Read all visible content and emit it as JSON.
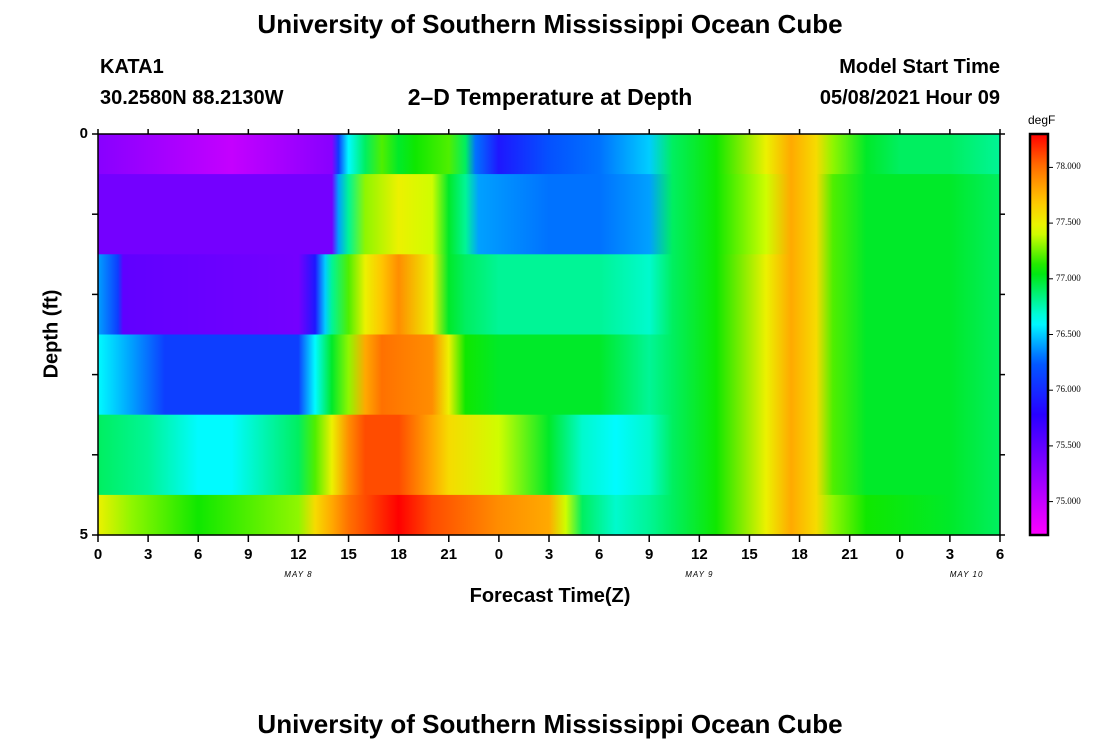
{
  "header": {
    "title": "University of Southern Mississippi Ocean Cube",
    "station": "KATA1",
    "coords": "30.2580N  88.2130W",
    "subtitle": "2–D Temperature at Depth",
    "model_label": "Model Start Time",
    "model_time": "05/08/2021 Hour 09"
  },
  "footer": {
    "title": "University of Southern Mississippi Ocean Cube"
  },
  "chart_data": {
    "type": "heatmap",
    "xlabel": "Forecast Time(Z)",
    "ylabel": "Depth (ft)",
    "units": "degF",
    "y_tick_labels": [
      "0",
      "5"
    ],
    "x_tick_labels": [
      "0",
      "3",
      "6",
      "9",
      "12",
      "15",
      "18",
      "21",
      "0",
      "3",
      "6",
      "9",
      "12",
      "15",
      "18",
      "21",
      "0",
      "3",
      "6"
    ],
    "day_labels": [
      {
        "hour": 12,
        "text": "MAY 8"
      },
      {
        "hour": 36,
        "text": "MAY 9"
      },
      {
        "hour": 52,
        "text": "MAY 10"
      }
    ],
    "x_range_hours": [
      0,
      54
    ],
    "depth_bands_ft": [
      [
        0,
        0.5
      ],
      [
        0.5,
        1.5
      ],
      [
        1.5,
        2.5
      ],
      [
        2.5,
        3.5
      ],
      [
        3.5,
        4.5
      ],
      [
        4.5,
        5
      ]
    ],
    "colorbar": {
      "label": "degF",
      "range": [
        74.7,
        78.3
      ],
      "ticks": [
        "75.000",
        "75.500",
        "76.000",
        "76.500",
        "77.000",
        "77.500",
        "78.000"
      ]
    },
    "temperature_rows": [
      {
        "depth_ft": [
          0,
          0.5
        ],
        "points": [
          [
            0,
            75.3
          ],
          [
            8,
            75.0
          ],
          [
            14,
            75.3
          ],
          [
            14.4,
            76.1
          ],
          [
            15,
            76.6
          ],
          [
            16,
            76.9
          ],
          [
            17,
            77.2
          ],
          [
            18,
            77.0
          ],
          [
            19,
            77.1
          ],
          [
            21,
            77.2
          ],
          [
            22,
            76.9
          ],
          [
            22.6,
            76.3
          ],
          [
            24,
            75.9
          ],
          [
            27,
            76.2
          ],
          [
            30,
            76.3
          ],
          [
            33,
            76.5
          ],
          [
            34.4,
            76.9
          ],
          [
            37,
            77.1
          ],
          [
            40,
            77.5
          ],
          [
            41.5,
            77.8
          ],
          [
            43,
            77.6
          ],
          [
            44,
            77.3
          ],
          [
            46,
            77.0
          ],
          [
            48,
            76.9
          ],
          [
            51,
            76.9
          ],
          [
            54,
            76.8
          ]
        ]
      },
      {
        "depth_ft": [
          0.5,
          1.5
        ],
        "points": [
          [
            0,
            75.4
          ],
          [
            14,
            75.4
          ],
          [
            14.4,
            76.4
          ],
          [
            15,
            76.8
          ],
          [
            16,
            77.3
          ],
          [
            18,
            77.5
          ],
          [
            20,
            77.4
          ],
          [
            21,
            77.0
          ],
          [
            22,
            76.8
          ],
          [
            22.8,
            76.4
          ],
          [
            27,
            76.3
          ],
          [
            30,
            76.3
          ],
          [
            33,
            76.4
          ],
          [
            34.4,
            76.9
          ],
          [
            37,
            77.1
          ],
          [
            40,
            77.4
          ],
          [
            41.5,
            77.8
          ],
          [
            43,
            77.6
          ],
          [
            44,
            77.2
          ],
          [
            46,
            77.0
          ],
          [
            51,
            77.0
          ],
          [
            54,
            76.9
          ]
        ]
      },
      {
        "depth_ft": [
          1.5,
          2.5
        ],
        "points": [
          [
            0,
            76.4
          ],
          [
            1.2,
            76.1
          ],
          [
            1.5,
            75.5
          ],
          [
            12,
            75.4
          ],
          [
            13,
            75.9
          ],
          [
            13.6,
            76.5
          ],
          [
            14,
            76.8
          ],
          [
            15,
            77.2
          ],
          [
            16,
            77.5
          ],
          [
            17,
            77.7
          ],
          [
            18,
            77.9
          ],
          [
            20,
            77.5
          ],
          [
            21,
            77.0
          ],
          [
            22,
            76.9
          ],
          [
            24,
            76.8
          ],
          [
            30,
            76.8
          ],
          [
            33,
            76.7
          ],
          [
            34.4,
            76.9
          ],
          [
            37,
            77.1
          ],
          [
            40,
            77.5
          ],
          [
            41.5,
            77.8
          ],
          [
            43,
            77.6
          ],
          [
            44,
            77.2
          ],
          [
            46,
            77.0
          ],
          [
            51,
            77.0
          ],
          [
            54,
            76.9
          ]
        ]
      },
      {
        "depth_ft": [
          2.5,
          3.5
        ],
        "points": [
          [
            0,
            76.6
          ],
          [
            2,
            76.4
          ],
          [
            4,
            76.1
          ],
          [
            12,
            76.1
          ],
          [
            13,
            76.6
          ],
          [
            14,
            77.0
          ],
          [
            15,
            77.3
          ],
          [
            16,
            77.8
          ],
          [
            17,
            78.0
          ],
          [
            20,
            77.9
          ],
          [
            21,
            77.5
          ],
          [
            22,
            77.1
          ],
          [
            24,
            77.0
          ],
          [
            30,
            77.0
          ],
          [
            33,
            76.8
          ],
          [
            34.4,
            76.9
          ],
          [
            37,
            77.1
          ],
          [
            40,
            77.5
          ],
          [
            41.5,
            77.8
          ],
          [
            43,
            77.6
          ],
          [
            44,
            77.2
          ],
          [
            46,
            77.0
          ],
          [
            51,
            77.0
          ],
          [
            54,
            76.9
          ]
        ]
      },
      {
        "depth_ft": [
          3.5,
          4.5
        ],
        "points": [
          [
            0,
            76.9
          ],
          [
            3,
            76.8
          ],
          [
            6,
            76.6
          ],
          [
            8,
            76.6
          ],
          [
            12,
            76.9
          ],
          [
            13,
            77.2
          ],
          [
            14,
            77.5
          ],
          [
            15,
            77.9
          ],
          [
            16,
            78.1
          ],
          [
            18,
            78.1
          ],
          [
            20,
            77.8
          ],
          [
            21,
            77.6
          ],
          [
            24,
            77.4
          ],
          [
            27,
            77.0
          ],
          [
            29,
            76.7
          ],
          [
            31,
            76.6
          ],
          [
            33,
            76.7
          ],
          [
            34.4,
            76.9
          ],
          [
            37,
            77.1
          ],
          [
            40,
            77.5
          ],
          [
            41.5,
            77.8
          ],
          [
            43,
            77.6
          ],
          [
            44,
            77.2
          ],
          [
            46,
            77.0
          ],
          [
            51,
            77.0
          ],
          [
            54,
            76.9
          ]
        ]
      },
      {
        "depth_ft": [
          4.5,
          5
        ],
        "points": [
          [
            0,
            77.5
          ],
          [
            2,
            77.3
          ],
          [
            6,
            77.1
          ],
          [
            12,
            77.3
          ],
          [
            13,
            77.6
          ],
          [
            14,
            77.8
          ],
          [
            15,
            78.0
          ],
          [
            17,
            78.2
          ],
          [
            18,
            78.3
          ],
          [
            20,
            78.1
          ],
          [
            24,
            77.9
          ],
          [
            27,
            77.8
          ],
          [
            28,
            77.4
          ],
          [
            29,
            76.9
          ],
          [
            31,
            76.7
          ],
          [
            33,
            76.8
          ],
          [
            34.4,
            76.9
          ],
          [
            37,
            77.1
          ],
          [
            40,
            77.5
          ],
          [
            41.5,
            77.8
          ],
          [
            43,
            77.6
          ],
          [
            44,
            77.3
          ],
          [
            46,
            77.1
          ],
          [
            51,
            77.0
          ],
          [
            54,
            76.9
          ]
        ]
      }
    ]
  }
}
